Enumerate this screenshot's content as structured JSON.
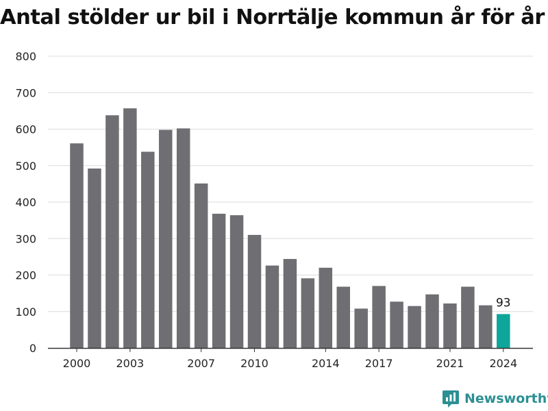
{
  "chart_data": {
    "type": "bar",
    "title": "Antal stölder ur bil i Norrtälje kommun år för år",
    "xlabel": "",
    "ylabel": "",
    "categories": [
      "2000",
      "2001",
      "2002",
      "2003",
      "2004",
      "2005",
      "2006",
      "2007",
      "2008",
      "2009",
      "2010",
      "2011",
      "2012",
      "2013",
      "2014",
      "2015",
      "2016",
      "2017",
      "2018",
      "2019",
      "2020",
      "2021",
      "2022",
      "2023",
      "2024"
    ],
    "values": [
      561,
      492,
      638,
      657,
      538,
      598,
      602,
      451,
      368,
      364,
      310,
      226,
      244,
      191,
      220,
      168,
      108,
      170,
      127,
      115,
      147,
      122,
      168,
      117,
      93
    ],
    "x_tick_labels": [
      "2000",
      "2003",
      "2007",
      "2010",
      "2014",
      "2017",
      "2021",
      "2024"
    ],
    "y_ticks": [
      "0",
      "100",
      "200",
      "300",
      "400",
      "500",
      "600",
      "700",
      "800"
    ],
    "ylim": [
      0,
      800
    ],
    "grid": true,
    "bar_color": "#6f6f73",
    "highlight_color": "#0ea69a",
    "highlight_category": "2024",
    "highlight_label": "93"
  },
  "branding": {
    "name": "Newsworthy",
    "icon": "newsworthy-logo-icon",
    "color": "#2c8f93"
  }
}
